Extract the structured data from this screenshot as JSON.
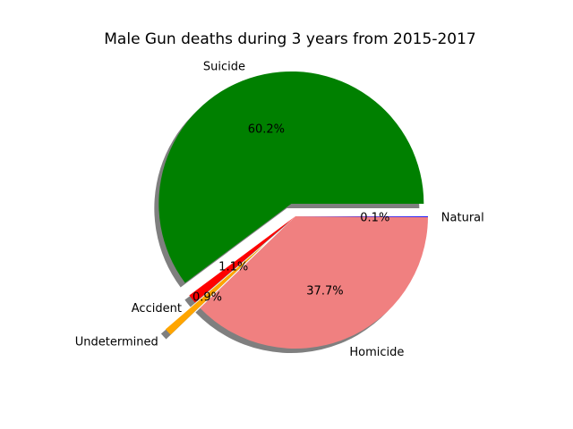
{
  "chart_data": {
    "type": "pie",
    "title": "Male Gun deaths during 3 years from 2015-2017",
    "slices": [
      {
        "label": "Suicide",
        "value": 60.2,
        "pct_label": "60.2%",
        "color": "#008000",
        "explode": 0.1
      },
      {
        "label": "Accident",
        "value": 1.1,
        "pct_label": "1.1%",
        "color": "#ff0000",
        "explode": 0.0
      },
      {
        "label": "Undetermined",
        "value": 0.9,
        "pct_label": "0.9%",
        "color": "#ffa500",
        "explode": 0.3
      },
      {
        "label": "Homicide",
        "value": 37.7,
        "pct_label": "37.7%",
        "color": "#f08080",
        "explode": 0.0
      },
      {
        "label": "Natural",
        "value": 0.1,
        "pct_label": "0.1%",
        "color": "#0000ff",
        "explode": 0.0
      }
    ],
    "start_angle": 0,
    "shadow": true
  }
}
